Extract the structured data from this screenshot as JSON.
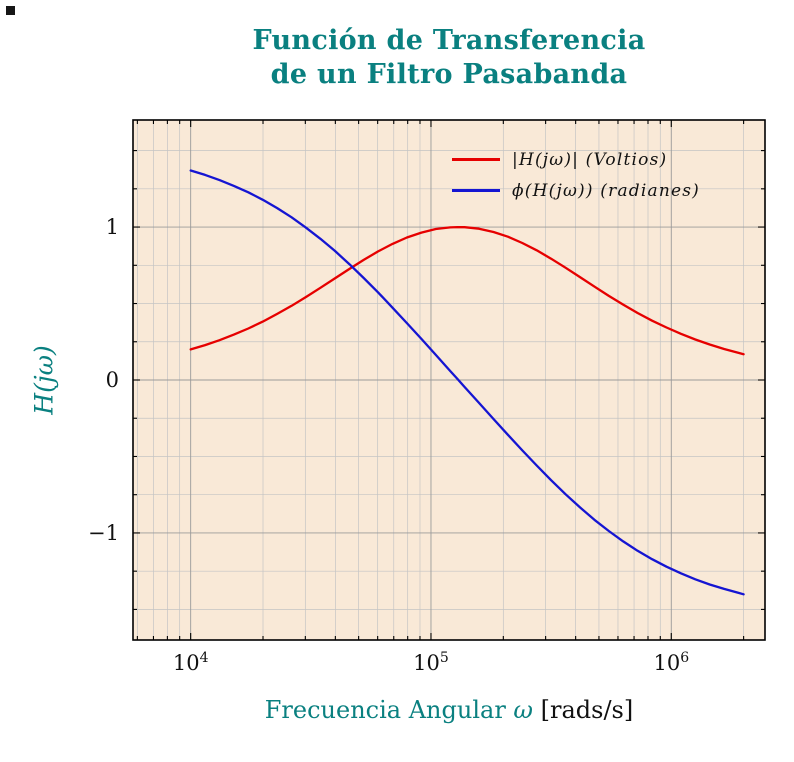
{
  "title": {
    "line1": "Función de Transferencia",
    "line2": "de un Filtro Pasabanda"
  },
  "axes": {
    "x_label_text": "Frecuencia Angular ",
    "x_label_omega": "ω",
    "x_label_unit": " [rads/s]",
    "y_label": "H(jω)",
    "x_ticks": [
      {
        "base": "10",
        "exp": "4",
        "log": 4
      },
      {
        "base": "10",
        "exp": "5",
        "log": 5
      },
      {
        "base": "10",
        "exp": "6",
        "log": 6
      }
    ],
    "y_ticks": [
      {
        "label": "−1",
        "value": -1
      },
      {
        "label": "0",
        "value": 0
      },
      {
        "label": "1",
        "value": 1
      }
    ]
  },
  "legend": {
    "items": [
      {
        "label": "|H(jω)| (Voltios)",
        "color": "#e60000"
      },
      {
        "label": "ϕ(H(jω)) (radianes)",
        "color": "#1515d2"
      }
    ]
  },
  "colors": {
    "accent": "#0a8080",
    "plot_bg": "#f9e9d7",
    "grid_major": "#9a9a9a",
    "grid_minor": "#c4c4c4",
    "spine": "#000000",
    "text": "#111111"
  },
  "chart_data": {
    "type": "line",
    "title": "Función de Transferencia de un Filtro Pasabanda",
    "xlabel": "Frecuencia Angular ω [rads/s]",
    "ylabel": "H(jω)",
    "x_scale": "log",
    "xlim": [
      5754,
      2455000
    ],
    "ylim": [
      -1.7,
      1.7
    ],
    "grid": "both",
    "legend_position": "top-right",
    "x": [
      10000,
      11482,
      13183,
      15136,
      17378,
      19953,
      22909,
      26303,
      30200,
      34674,
      39811,
      45709,
      52481,
      60256,
      69183,
      79433,
      91201,
      104713,
      120226,
      128825,
      138038,
      158489,
      181970,
      208930,
      239883,
      275423,
      316228,
      363078,
      416869,
      478630,
      549541,
      630957,
      724436,
      831764,
      954993,
      1096478,
      1258925,
      1445440,
      1659587,
      1905461,
      2000000
    ],
    "series": [
      {
        "name": "|H(jω)| (Voltios)",
        "color": "#e60000",
        "values": [
          0.2,
          0.228,
          0.26,
          0.297,
          0.337,
          0.382,
          0.432,
          0.485,
          0.543,
          0.603,
          0.664,
          0.726,
          0.785,
          0.841,
          0.89,
          0.932,
          0.964,
          0.987,
          0.998,
          1.0,
          0.999,
          0.989,
          0.968,
          0.937,
          0.896,
          0.848,
          0.793,
          0.734,
          0.673,
          0.611,
          0.55,
          0.493,
          0.438,
          0.388,
          0.343,
          0.302,
          0.265,
          0.232,
          0.203,
          0.177,
          0.169
        ]
      },
      {
        "name": "ϕ(H(jω)) (radianes)",
        "color": "#1515d2",
        "values": [
          1.37,
          1.341,
          1.307,
          1.269,
          1.227,
          1.178,
          1.124,
          1.064,
          0.996,
          0.923,
          0.844,
          0.758,
          0.667,
          0.573,
          0.473,
          0.372,
          0.269,
          0.164,
          0.059,
          0.007,
          -0.046,
          -0.15,
          -0.255,
          -0.358,
          -0.46,
          -0.559,
          -0.655,
          -0.747,
          -0.833,
          -0.914,
          -0.987,
          -1.055,
          -1.117,
          -1.172,
          -1.221,
          -1.264,
          -1.303,
          -1.337,
          -1.366,
          -1.392,
          -1.401
        ]
      }
    ]
  }
}
